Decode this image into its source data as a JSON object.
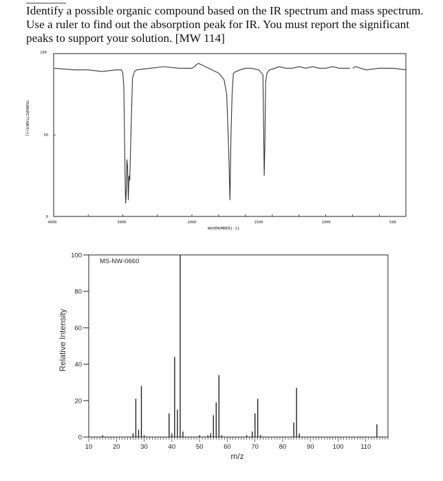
{
  "question": {
    "text": "Identify a possible organic compound based on the IR spectrum and mass spectrum. Use a ruler to find out the absorption peak for IR. You must report the significant peaks to support your solution. [MW 114]"
  },
  "ir_spectrum": {
    "ylabel": "TRANSMITTANCE[%]",
    "xlabel": "WAVENUMBER[-1]",
    "yticks": [
      "100",
      "50",
      "0"
    ],
    "xticks": [
      "4000",
      "3000",
      "2000",
      "1500",
      "1000",
      "500"
    ]
  },
  "mass_spectrum": {
    "title": "MS-NW-0660",
    "xlabel": "m/z",
    "ylabel": "Relative Intensity",
    "yticks": [
      "0",
      "20",
      "40",
      "60",
      "80",
      "100"
    ],
    "xticks": [
      "10",
      "20",
      "30",
      "40",
      "50",
      "60",
      "70",
      "80",
      "90",
      "100",
      "110"
    ]
  },
  "chart_data": [
    {
      "type": "line",
      "xlabel": "WAVENUMBER[-1]",
      "ylabel": "TRANSMITTANCE[%]",
      "xlim": [
        4000,
        400
      ],
      "ylim": [
        0,
        100
      ],
      "x": [
        3990,
        3700,
        3500,
        3300,
        3100,
        3020,
        3000,
        2985,
        2975,
        2965,
        2958,
        2950,
        2940,
        2930,
        2920,
        2910,
        2900,
        2880,
        2860,
        2830,
        2800,
        2600,
        2400,
        2200,
        2000,
        1980,
        1970,
        1950,
        1800,
        1760,
        1740,
        1725,
        1716,
        1708,
        1700,
        1690,
        1670,
        1640,
        1600,
        1560,
        1500,
        1470,
        1465,
        1460,
        1455,
        1450,
        1440,
        1420,
        1380,
        1350,
        1300,
        1250,
        1200,
        1150,
        1100,
        1050,
        1000,
        950,
        900,
        820,
        800,
        780,
        700,
        600,
        500,
        400
      ],
      "y": [
        91,
        90,
        90,
        89,
        90,
        90,
        88,
        80,
        50,
        20,
        8,
        15,
        35,
        30,
        10,
        25,
        22,
        55,
        85,
        89,
        90,
        91,
        92,
        91,
        91,
        92,
        93,
        94,
        88,
        84,
        75,
        40,
        10,
        50,
        75,
        88,
        89,
        90,
        91,
        91,
        90,
        87,
        60,
        25,
        45,
        82,
        88,
        90,
        91,
        92,
        91,
        91,
        92,
        91,
        92,
        91,
        91,
        92,
        91,
        91,
        91,
        92,
        90,
        91,
        91,
        90
      ],
      "gaps_after_x": [
        820
      ]
    },
    {
      "type": "bar",
      "xlabel": "m/z",
      "ylabel": "Relative Intensity",
      "title": "MS-NW-0660",
      "xlim": [
        10,
        118
      ],
      "ylim": [
        0,
        100
      ],
      "x": [
        15,
        26,
        27,
        28,
        29,
        30,
        39,
        40,
        41,
        42,
        43,
        44,
        50,
        53,
        54,
        55,
        56,
        57,
        58,
        67,
        69,
        70,
        71,
        72,
        84,
        85,
        86,
        114
      ],
      "values": [
        1,
        2,
        21,
        4,
        28,
        1,
        13,
        2,
        44,
        15,
        100,
        3,
        1,
        1,
        2,
        12,
        19,
        34,
        1,
        1,
        3,
        13,
        21,
        1,
        8,
        27,
        2,
        7
      ]
    }
  ]
}
